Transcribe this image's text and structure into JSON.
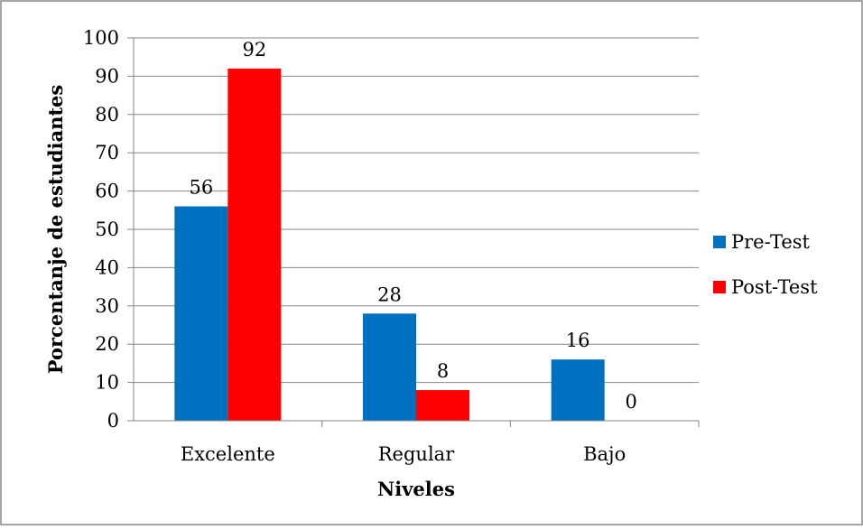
{
  "chart_data": {
    "type": "bar",
    "title": "",
    "categories": [
      "Excelente",
      "Regular",
      "Bajo"
    ],
    "series": [
      {
        "name": "Pre-Test",
        "values": [
          56,
          28,
          16
        ]
      },
      {
        "name": "Post-Test",
        "values": [
          92,
          8,
          0
        ]
      }
    ],
    "xlabel": "Niveles",
    "ylabel": "Porcentanje de estudiantes",
    "ylim": [
      0,
      100
    ],
    "yticks": [
      0,
      10,
      20,
      30,
      40,
      50,
      60,
      70,
      80,
      90,
      100
    ],
    "grid": true,
    "legend_position": "right",
    "colors": {
      "Pre-Test": "#0070c0",
      "Post-Test": "#ff0000"
    }
  }
}
